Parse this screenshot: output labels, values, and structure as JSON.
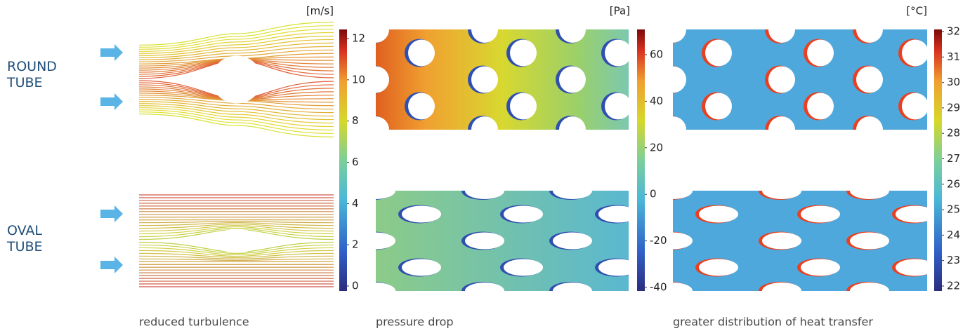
{
  "row_labels": [
    "ROUND TUBE",
    "OVAL TUBE"
  ],
  "panels": [
    {
      "caption": "reduced turbulence",
      "colorbar": {
        "unit": "[m/s]",
        "ticks": [
          12,
          10,
          8,
          6,
          4,
          2,
          0
        ]
      }
    },
    {
      "caption": "pressure drop",
      "colorbar": {
        "unit": "[Pa]",
        "ticks": [
          60,
          40,
          20,
          0,
          -20,
          -40
        ]
      }
    },
    {
      "caption": "greater distribution of heat transfer",
      "colorbar": {
        "unit": "[°C]",
        "ticks": [
          32,
          31,
          30,
          29,
          28,
          27,
          26,
          25,
          24,
          23,
          22
        ]
      }
    }
  ]
}
